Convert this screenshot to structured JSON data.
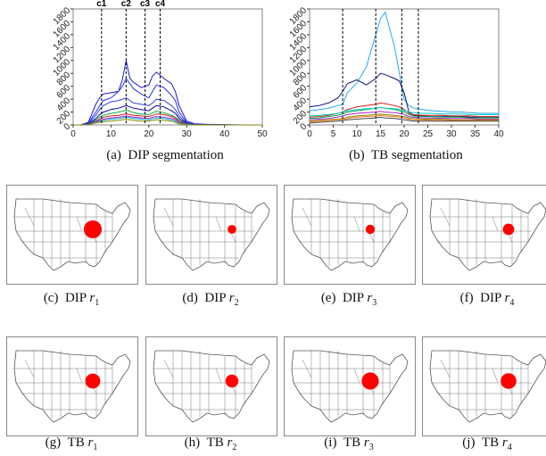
{
  "figures": {
    "a": {
      "caption_prefix": "(a)",
      "caption_text": "DIP segmentation"
    },
    "b": {
      "caption_prefix": "(b)",
      "caption_text": "TB segmentation"
    }
  },
  "chart_data": [
    {
      "type": "line",
      "id": "dip-chart",
      "title": "",
      "xlabel": "",
      "ylabel": "",
      "xlim": [
        0,
        50
      ],
      "ylim": [
        0,
        1800
      ],
      "xticks": [
        0,
        10,
        20,
        30,
        40,
        50
      ],
      "yticks": [
        0,
        200,
        400,
        600,
        800,
        1000,
        1200,
        1400,
        1600,
        1800
      ],
      "vlines": [
        {
          "x": 7.5,
          "label": "c1"
        },
        {
          "x": 14,
          "label": "c2"
        },
        {
          "x": 19,
          "label": "c3"
        },
        {
          "x": 23,
          "label": "c4"
        }
      ],
      "x": [
        0,
        2,
        4,
        6,
        7,
        8,
        10,
        12,
        13,
        14,
        15,
        16,
        18,
        20,
        21,
        22,
        24,
        26,
        27,
        28,
        30,
        32,
        35,
        40,
        45,
        50
      ],
      "series": [
        {
          "color": "#1a1acc",
          "values": [
            0,
            0,
            40,
            320,
            420,
            480,
            500,
            520,
            700,
            1000,
            720,
            660,
            580,
            620,
            760,
            820,
            720,
            640,
            520,
            300,
            60,
            20,
            10,
            5,
            0,
            0
          ]
        },
        {
          "color": "#2233ee",
          "values": [
            0,
            0,
            30,
            200,
            300,
            380,
            420,
            520,
            600,
            720,
            640,
            560,
            480,
            420,
            520,
            620,
            580,
            460,
            380,
            200,
            40,
            10,
            5,
            0,
            0,
            0
          ]
        },
        {
          "color": "#3344dd",
          "values": [
            0,
            0,
            20,
            150,
            240,
            300,
            360,
            380,
            400,
            420,
            380,
            340,
            320,
            300,
            340,
            400,
            380,
            300,
            240,
            140,
            30,
            10,
            0,
            0,
            0,
            0
          ]
        },
        {
          "color": "#0000aa",
          "values": [
            0,
            0,
            15,
            100,
            160,
            200,
            240,
            260,
            280,
            300,
            280,
            260,
            240,
            220,
            260,
            300,
            280,
            220,
            180,
            100,
            20,
            5,
            0,
            0,
            0,
            0
          ]
        },
        {
          "color": "#00aa44",
          "values": [
            0,
            0,
            10,
            80,
            120,
            150,
            180,
            200,
            210,
            230,
            210,
            190,
            170,
            160,
            190,
            210,
            190,
            150,
            120,
            70,
            15,
            5,
            0,
            0,
            0,
            0
          ]
        },
        {
          "color": "#cc2222",
          "values": [
            0,
            0,
            10,
            60,
            90,
            120,
            140,
            150,
            160,
            170,
            160,
            150,
            140,
            130,
            150,
            170,
            160,
            130,
            100,
            60,
            12,
            4,
            0,
            0,
            0,
            0
          ]
        },
        {
          "color": "#aa22cc",
          "values": [
            0,
            0,
            8,
            50,
            70,
            90,
            110,
            120,
            130,
            140,
            130,
            120,
            110,
            100,
            120,
            130,
            120,
            100,
            80,
            40,
            10,
            3,
            0,
            0,
            0,
            0
          ]
        },
        {
          "color": "#00aacc",
          "values": [
            0,
            0,
            5,
            40,
            60,
            70,
            90,
            100,
            110,
            120,
            110,
            100,
            90,
            80,
            100,
            110,
            100,
            80,
            60,
            30,
            8,
            2,
            0,
            0,
            0,
            0
          ]
        },
        {
          "color": "#888800",
          "values": [
            0,
            0,
            5,
            30,
            40,
            50,
            60,
            70,
            80,
            90,
            80,
            70,
            60,
            60,
            70,
            80,
            70,
            60,
            40,
            20,
            5,
            0,
            0,
            0,
            0,
            0
          ]
        }
      ]
    },
    {
      "type": "line",
      "id": "tb-chart",
      "title": "",
      "xlabel": "",
      "ylabel": "",
      "xlim": [
        0,
        40
      ],
      "ylim": [
        0,
        1800
      ],
      "xticks": [
        0,
        5,
        10,
        15,
        20,
        25,
        30,
        35,
        40
      ],
      "yticks": [
        0,
        200,
        400,
        600,
        800,
        1000,
        1200,
        1400,
        1600,
        1800
      ],
      "vlines": [
        {
          "x": 7,
          "label": ""
        },
        {
          "x": 14,
          "label": ""
        },
        {
          "x": 19.5,
          "label": ""
        },
        {
          "x": 23,
          "label": ""
        }
      ],
      "x": [
        0,
        2,
        4,
        6,
        7,
        8,
        10,
        12,
        14,
        15,
        16,
        18,
        19,
        20,
        21,
        22,
        24,
        26,
        28,
        30,
        32,
        34,
        36,
        38,
        40
      ],
      "series": [
        {
          "color": "#22aaee",
          "values": [
            220,
            240,
            260,
            300,
            320,
            500,
            650,
            900,
            1400,
            1650,
            1750,
            1200,
            800,
            400,
            300,
            260,
            240,
            220,
            210,
            200,
            200,
            190,
            180,
            180,
            180
          ]
        },
        {
          "color": "#111177",
          "values": [
            280,
            300,
            340,
            420,
            520,
            640,
            700,
            620,
            720,
            800,
            780,
            720,
            680,
            500,
            200,
            150,
            140,
            130,
            130,
            130,
            130,
            120,
            120,
            120,
            120
          ]
        },
        {
          "color": "#cc2222",
          "values": [
            120,
            130,
            150,
            180,
            200,
            240,
            280,
            300,
            320,
            340,
            330,
            300,
            280,
            240,
            180,
            160,
            150,
            150,
            150,
            140,
            140,
            140,
            130,
            130,
            130
          ]
        },
        {
          "color": "#00aa44",
          "values": [
            100,
            110,
            130,
            150,
            170,
            200,
            220,
            240,
            260,
            270,
            260,
            240,
            220,
            200,
            160,
            140,
            130,
            130,
            120,
            120,
            120,
            110,
            110,
            110,
            110
          ]
        },
        {
          "color": "#aa22cc",
          "values": [
            80,
            90,
            100,
            120,
            140,
            160,
            180,
            190,
            200,
            210,
            200,
            190,
            180,
            160,
            130,
            120,
            110,
            110,
            100,
            100,
            100,
            100,
            90,
            90,
            90
          ]
        },
        {
          "color": "#00cccc",
          "values": [
            140,
            150,
            160,
            180,
            200,
            220,
            240,
            250,
            260,
            270,
            260,
            250,
            240,
            220,
            200,
            190,
            180,
            180,
            170,
            170,
            170,
            160,
            160,
            160,
            160
          ]
        },
        {
          "color": "#888800",
          "values": [
            60,
            70,
            80,
            90,
            100,
            120,
            140,
            150,
            160,
            170,
            160,
            150,
            140,
            130,
            110,
            100,
            90,
            90,
            90,
            80,
            80,
            80,
            80,
            80,
            80
          ]
        },
        {
          "color": "#ee7722",
          "values": [
            50,
            60,
            70,
            80,
            90,
            100,
            120,
            130,
            140,
            150,
            140,
            130,
            120,
            110,
            90,
            80,
            80,
            70,
            70,
            70,
            70,
            70,
            70,
            70,
            70
          ]
        },
        {
          "color": "#444444",
          "values": [
            30,
            40,
            50,
            60,
            70,
            80,
            90,
            100,
            110,
            120,
            110,
            100,
            90,
            80,
            70,
            60,
            60,
            60,
            60,
            60,
            60,
            60,
            60,
            60,
            60
          ]
        }
      ]
    }
  ],
  "maps": [
    {
      "id": "c",
      "prefix": "(c)",
      "method": "DIP",
      "var": "r",
      "sub": "1",
      "dot": 1.0
    },
    {
      "id": "d",
      "prefix": "(d)",
      "method": "DIP",
      "var": "r",
      "sub": "2",
      "dot": 0.36
    },
    {
      "id": "e",
      "prefix": "(e)",
      "method": "DIP",
      "var": "r",
      "sub": "3",
      "dot": 0.4
    },
    {
      "id": "f",
      "prefix": "(f)",
      "method": "DIP",
      "var": "r",
      "sub": "4",
      "dot": 0.55
    },
    {
      "id": "g",
      "prefix": "(g)",
      "method": "TB",
      "var": "r",
      "sub": "1",
      "dot": 0.8
    },
    {
      "id": "h",
      "prefix": "(h)",
      "method": "TB",
      "var": "r",
      "sub": "2",
      "dot": 0.65
    },
    {
      "id": "i",
      "prefix": "(i)",
      "method": "TB",
      "var": "r",
      "sub": "3",
      "dot": 0.95
    },
    {
      "id": "j",
      "prefix": "(j)",
      "method": "TB",
      "var": "r",
      "sub": "4",
      "dot": 0.85
    }
  ],
  "colors": {
    "dot": "#ff0000",
    "map_line": "#555555"
  }
}
